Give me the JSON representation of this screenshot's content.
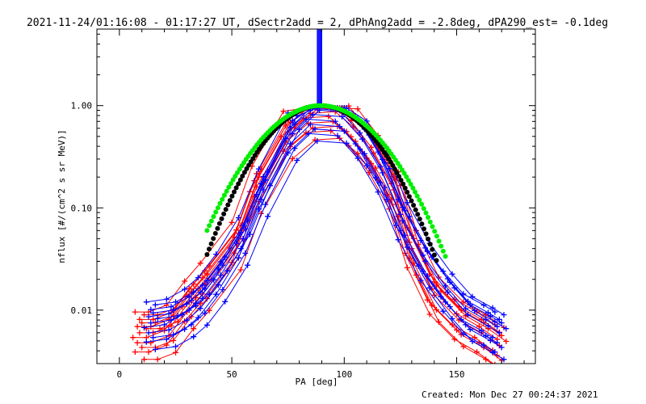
{
  "chart_data": {
    "type": "line",
    "title": "2021-11-24/01:16:08 - 01:17:27 UT, dSectr2add = 2, dPhAng2add = -2.8deg, dPA290_est= -0.1deg",
    "xlabel": "PA [deg]",
    "ylabel": "nflux [#/(cm^2 s sr MeV)]",
    "xlim": [
      -10,
      185
    ],
    "ylim": [
      0.003,
      5.6
    ],
    "yscale": "log",
    "x_ticks": [
      0,
      50,
      100,
      150
    ],
    "x_tick_labels": [
      "0",
      "50",
      "100",
      "150"
    ],
    "y_ticks": [
      0.01,
      0.1,
      1.0
    ],
    "y_tick_labels": [
      "0.01",
      "0.10",
      "1.00"
    ],
    "grid": false,
    "footer": "Created: Mon Dec 27 00:24:37 2021",
    "colors": {
      "red_series": "#ff0000",
      "blue_series": "#0000ff",
      "green_fit": "#00ee00",
      "black_fit": "#000000",
      "axes": "#000000",
      "background": "#ffffff"
    },
    "red_template": {
      "x": [
        9,
        15,
        23,
        31,
        38,
        52,
        61,
        75,
        85,
        96,
        104,
        113,
        122,
        130,
        140,
        151,
        161,
        169
      ],
      "y": [
        0.006,
        0.006,
        0.007,
        0.012,
        0.018,
        0.045,
        0.16,
        0.55,
        0.84,
        0.87,
        0.62,
        0.34,
        0.15,
        0.04,
        0.014,
        0.008,
        0.006,
        0.0045
      ]
    },
    "blue_template": {
      "x": [
        14,
        23,
        31,
        37,
        45,
        55,
        64,
        77,
        86,
        99,
        108,
        117,
        126,
        136,
        146,
        155,
        164,
        169
      ],
      "y": [
        0.0075,
        0.008,
        0.01,
        0.013,
        0.022,
        0.05,
        0.15,
        0.53,
        0.82,
        0.78,
        0.47,
        0.22,
        0.075,
        0.03,
        0.015,
        0.009,
        0.007,
        0.006
      ]
    },
    "series": [
      {
        "color": "red",
        "y_scale": 1.0,
        "x_shift": 0
      },
      {
        "color": "red",
        "y_scale": 1.25,
        "x_shift": 1
      },
      {
        "color": "red",
        "y_scale": 0.8,
        "x_shift": -1
      },
      {
        "color": "red",
        "y_scale": 1.5,
        "x_shift": 2
      },
      {
        "color": "red",
        "y_scale": 0.65,
        "x_shift": -2
      },
      {
        "color": "red",
        "y_scale": 1.1,
        "x_shift": 3
      },
      {
        "color": "red",
        "y_scale": 0.9,
        "x_shift": -3
      },
      {
        "color": "red",
        "y_scale": 1.35,
        "x_shift": 0
      },
      {
        "color": "red",
        "y_scale": 0.72,
        "x_shift": 1
      },
      {
        "color": "red",
        "y_scale": 1.15,
        "x_shift": -1
      },
      {
        "color": "red",
        "y_scale": 0.55,
        "x_shift": 2
      },
      {
        "color": "red",
        "y_scale": 1.6,
        "x_shift": -2
      },
      {
        "color": "blue",
        "y_scale": 1.0,
        "x_shift": 0
      },
      {
        "color": "blue",
        "y_scale": 1.25,
        "x_shift": 1
      },
      {
        "color": "blue",
        "y_scale": 0.8,
        "x_shift": -1
      },
      {
        "color": "blue",
        "y_scale": 1.5,
        "x_shift": 2
      },
      {
        "color": "blue",
        "y_scale": 0.65,
        "x_shift": -2
      },
      {
        "color": "blue",
        "y_scale": 1.1,
        "x_shift": 3
      },
      {
        "color": "blue",
        "y_scale": 0.9,
        "x_shift": -3
      },
      {
        "color": "blue",
        "y_scale": 1.35,
        "x_shift": 0
      },
      {
        "color": "blue",
        "y_scale": 0.72,
        "x_shift": 1
      },
      {
        "color": "blue",
        "y_scale": 1.15,
        "x_shift": -1
      },
      {
        "color": "blue",
        "y_scale": 0.55,
        "x_shift": 2
      },
      {
        "color": "blue",
        "y_scale": 1.6,
        "x_shift": -2
      }
    ],
    "blue_spike": {
      "x_range": [
        88,
        90
      ],
      "y_range": [
        1.0,
        5.6
      ]
    },
    "fits": [
      {
        "color": "green",
        "model": "gaussian",
        "center": 89.5,
        "amplitude": 1.0,
        "sigma": 21.3,
        "x_range": [
          39,
          145
        ]
      },
      {
        "color": "black",
        "model": "gaussian",
        "center": 89.5,
        "amplitude": 1.0,
        "sigma": 19.5,
        "x_range": [
          39,
          141
        ]
      }
    ]
  }
}
